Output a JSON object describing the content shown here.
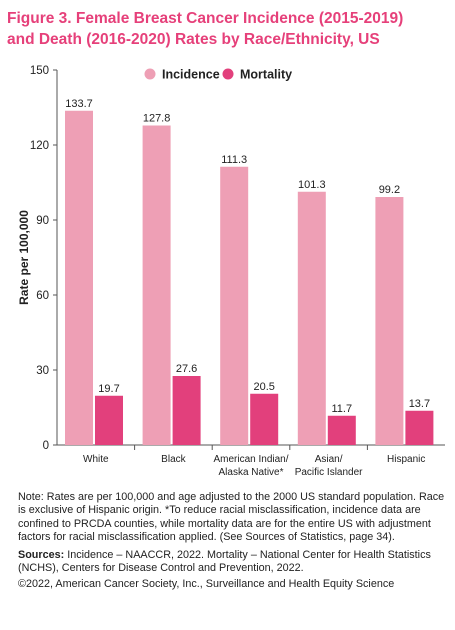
{
  "title_line1": "Figure 3. Female Breast Cancer Incidence (2015-2019)",
  "title_line2": "and Death (2016-2020) Rates by Race/Ethnicity, US",
  "chart_data": {
    "type": "bar",
    "categories": [
      "White",
      "Black",
      "American Indian/ Alaska Native*",
      "Asian/ Pacific Islander",
      "Hispanic"
    ],
    "category_lines": [
      [
        "White"
      ],
      [
        "Black"
      ],
      [
        "American Indian/",
        "Alaska Native*"
      ],
      [
        "Asian/",
        "Pacific Islander"
      ],
      [
        "Hispanic"
      ]
    ],
    "series": [
      {
        "name": "Incidence",
        "values": [
          133.7,
          127.8,
          111.3,
          101.3,
          99.2
        ],
        "labels": [
          "133.7",
          "127.8",
          "111.3",
          "101.3",
          "99.2"
        ],
        "color": "#ee9fb5"
      },
      {
        "name": "Mortality",
        "values": [
          19.7,
          27.6,
          20.5,
          11.7,
          13.7
        ],
        "labels": [
          "19.7",
          "27.6",
          "20.5",
          "11.7",
          "13.7"
        ],
        "color": "#e2407c"
      }
    ],
    "ylabel": "Rate per 100,000",
    "ylim": [
      0,
      150
    ],
    "yticks": [
      0,
      30,
      60,
      90,
      120,
      150
    ],
    "legend_position": "top"
  },
  "note": "Note: Rates are per 100,000 and age adjusted to the 2000 US standard population. Race is exclusive of Hispanic origin. *To reduce racial misclassification, incidence data are confined to PRCDA counties, while mortality data are for the entire US with adjustment factors for racial misclassification applied. (See Sources of Statistics, page 34).",
  "sources_label": "Sources:",
  "sources_text": " Incidence – NAACCR, 2022. Mortality – National Center for Health Statistics (NCHS), Centers for Disease Control and Prevention, 2022.",
  "copyright": "©2022, American Cancer Society, Inc., Surveillance and Health Equity Science"
}
